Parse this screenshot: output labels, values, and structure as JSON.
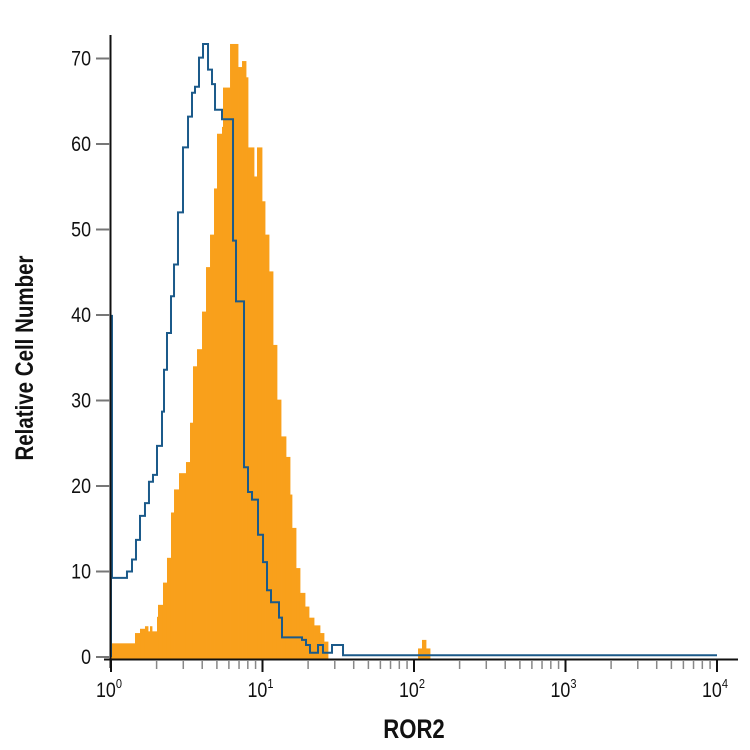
{
  "chart_data": {
    "type": "bar",
    "subtype": "histogram-overlay",
    "xlabel": "ROR2",
    "ylabel": "Relative Cell Number",
    "xscale": "log",
    "xlim": [
      1,
      10000
    ],
    "ylim": [
      0,
      72
    ],
    "y_ticks": [
      0,
      10,
      20,
      30,
      40,
      50,
      60,
      70
    ],
    "y_tick_labels": [
      "0",
      "10",
      "20",
      "30",
      "40",
      "50",
      "60",
      "70"
    ],
    "x_ticks": [
      1,
      10,
      100,
      1000,
      10000
    ],
    "x_tick_labels": [
      [
        "10",
        "0"
      ],
      [
        "10",
        "1"
      ],
      [
        "10",
        "2"
      ],
      [
        "10",
        "3"
      ],
      [
        "10",
        "4"
      ]
    ],
    "grid": false,
    "legend": "none",
    "series": [
      {
        "style": "filled",
        "color": "#F9A01B",
        "edges": [
          1.0,
          1.44,
          1.554,
          1.676,
          1.755,
          1.809,
          1.865,
          2.012,
          2.043,
          2.204,
          2.342,
          2.489,
          2.606,
          2.811,
          3.126,
          3.323,
          3.477,
          3.696,
          3.988,
          4.238,
          4.504,
          4.786,
          5.008,
          5.404,
          5.487,
          6.105,
          6.893,
          7.325,
          7.784,
          8.022,
          8.788,
          9.199,
          9.924,
          10.39,
          11.04,
          11.73,
          12.46,
          13.25,
          14.29,
          15.19,
          15.65,
          16.64,
          17.68,
          19.08,
          20.27,
          21.88,
          23.96,
          25.46,
          27.06,
          106.3,
          112.9,
          120,
          127.6
        ],
        "counts": [
          1.6,
          2.8,
          3.3,
          3.6,
          3.0,
          3.6,
          3.0,
          4.7,
          6.1,
          8.7,
          11.6,
          16.9,
          19.6,
          21.5,
          22.8,
          27.4,
          34,
          36,
          40.4,
          45.6,
          49.4,
          54.8,
          61.2,
          62,
          66.6,
          71.7,
          69,
          69.7,
          67.8,
          59.6,
          56.2,
          59.6,
          53.3,
          49.4,
          45.1,
          36.5,
          30.1,
          25.8,
          23.4,
          19,
          15.1,
          10.4,
          7.5,
          5.9,
          4.6,
          3.7,
          2.8,
          1.8,
          0,
          1.0,
          2.0,
          1.0
        ]
      },
      {
        "style": "outline",
        "color": "#1B5A8A",
        "edges": [
          1.0,
          1.015,
          1.275,
          1.376,
          1.462,
          1.554,
          1.676,
          1.781,
          1.893,
          2.012,
          2.171,
          2.238,
          2.342,
          2.489,
          2.606,
          2.768,
          2.987,
          3.224,
          3.425,
          3.585,
          3.809,
          4.049,
          4.369,
          4.642,
          4.859,
          5.404,
          6.389,
          6.686,
          7.551,
          8.022,
          8.526,
          9.34,
          10.08,
          10.71,
          11.38,
          12.85,
          13.45,
          18.23,
          19.37,
          20.58,
          23.25,
          25.07,
          28.76,
          34.0,
          10000
        ],
        "counts": [
          39.9,
          9.25,
          10,
          11.4,
          13.7,
          16.5,
          18,
          20.5,
          21.3,
          24.7,
          28.7,
          33.6,
          37.9,
          42.2,
          45.9,
          52,
          59.6,
          63.2,
          66,
          66.7,
          70.1,
          71.7,
          68.7,
          67,
          64,
          62.9,
          48.7,
          41.6,
          22.2,
          19.3,
          18.4,
          14.3,
          11.1,
          7.8,
          6.4,
          4.6,
          2.3,
          2.0,
          1.4,
          0.5,
          1.4,
          0.5,
          1.4,
          0.2
        ]
      }
    ]
  }
}
